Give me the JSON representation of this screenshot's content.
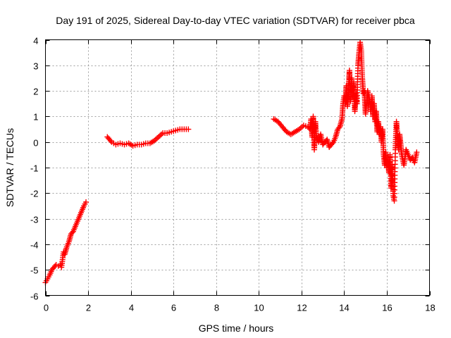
{
  "chart_data": {
    "type": "scatter",
    "title": "Day 191 of 2025, Sidereal Day-to-day VTEC variation (SDTVAR) for receiver pbca",
    "xlabel": "GPS time / hours",
    "ylabel": "SDTVAR / TECUs",
    "xlim": [
      0,
      18
    ],
    "ylim": [
      -6,
      4
    ],
    "xticks": [
      0,
      2,
      4,
      6,
      8,
      10,
      12,
      14,
      16,
      18
    ],
    "yticks": [
      -6,
      -5,
      -4,
      -3,
      -2,
      -1,
      0,
      1,
      2,
      3,
      4
    ],
    "grid": true,
    "marker": "+",
    "color": "#ff0000",
    "series": [
      {
        "name": "SDTVAR",
        "segments": [
          {
            "x": [
              0.0,
              0.1,
              0.2,
              0.3,
              0.4,
              0.5,
              0.6,
              0.7,
              0.75,
              0.8,
              0.85,
              0.9,
              1.0,
              1.1,
              1.2,
              1.3,
              1.4,
              1.5,
              1.6,
              1.7,
              1.8,
              1.9
            ],
            "y": [
              -5.5,
              -5.35,
              -5.2,
              -5.0,
              -4.9,
              -4.8,
              -4.85,
              -4.8,
              -4.9,
              -4.6,
              -4.3,
              -4.4,
              -4.1,
              -3.9,
              -3.6,
              -3.5,
              -3.3,
              -3.1,
              -2.9,
              -2.7,
              -2.5,
              -2.35
            ]
          },
          {
            "x": [
              2.9,
              3.0,
              3.1,
              3.2,
              3.3,
              3.5,
              3.7,
              3.9,
              4.1,
              4.3,
              4.5,
              4.7,
              4.9,
              5.1,
              5.3,
              5.5,
              5.7,
              5.9,
              6.1,
              6.3,
              6.5,
              6.7
            ],
            "y": [
              0.2,
              0.1,
              0.0,
              -0.05,
              -0.1,
              -0.05,
              -0.1,
              -0.05,
              -0.15,
              -0.1,
              -0.1,
              -0.05,
              -0.05,
              0.05,
              0.2,
              0.35,
              0.35,
              0.4,
              0.45,
              0.5,
              0.5,
              0.5
            ]
          },
          {
            "x": [
              10.7,
              10.9,
              11.1,
              11.3,
              11.5,
              11.7,
              11.9,
              12.1,
              12.3,
              12.4,
              12.45,
              12.5,
              12.55,
              12.6,
              12.65,
              12.7,
              12.8,
              12.9,
              13.0,
              13.1,
              13.2,
              13.3,
              13.4,
              13.5,
              13.6,
              13.7,
              13.8,
              13.9,
              13.95,
              14.0,
              14.05,
              14.1,
              14.15,
              14.2,
              14.25,
              14.3,
              14.35,
              14.4,
              14.45,
              14.5,
              14.55,
              14.6,
              14.65,
              14.7,
              14.75,
              14.8,
              14.85,
              14.9,
              14.95,
              15.0,
              15.05,
              15.1,
              15.15,
              15.2,
              15.25,
              15.3,
              15.35,
              15.4,
              15.45,
              15.5,
              15.55,
              15.6,
              15.65,
              15.7,
              15.75,
              15.8,
              15.85,
              15.9,
              15.95,
              16.0,
              16.05,
              16.1,
              16.15,
              16.2,
              16.25,
              16.3,
              16.35,
              16.4,
              16.45,
              16.5,
              16.55,
              16.6,
              16.7,
              16.8,
              16.9,
              17.0,
              17.1,
              17.2,
              17.3,
              17.4
            ],
            "y": [
              0.9,
              0.8,
              0.6,
              0.4,
              0.3,
              0.4,
              0.5,
              0.65,
              0.6,
              0.5,
              0.9,
              0.2,
              1.0,
              -0.3,
              0.8,
              0.2,
              0.0,
              0.3,
              -0.1,
              0.0,
              0.1,
              -0.2,
              -0.1,
              0.0,
              0.2,
              0.5,
              0.6,
              0.9,
              1.5,
              1.8,
              1.5,
              2.2,
              1.4,
              2.0,
              2.8,
              1.6,
              2.5,
              1.8,
              2.3,
              1.2,
              1.9,
              1.5,
              3.0,
              3.5,
              3.9,
              3.6,
              2.5,
              1.9,
              2.0,
              1.1,
              1.5,
              2.0,
              1.8,
              1.6,
              1.2,
              1.8,
              1.0,
              1.5,
              0.8,
              1.2,
              0.4,
              0.8,
              0.3,
              0.6,
              0.0,
              0.5,
              -0.5,
              -0.9,
              -0.4,
              -1.0,
              -0.7,
              -1.2,
              -0.5,
              -1.8,
              -0.9,
              -2.1,
              -2.3,
              -0.3,
              0.8,
              0.2,
              -0.3,
              0.3,
              -0.5,
              -0.9,
              -0.3,
              -0.5,
              -0.7,
              -0.6,
              -0.8,
              -0.4
            ]
          }
        ]
      }
    ]
  }
}
